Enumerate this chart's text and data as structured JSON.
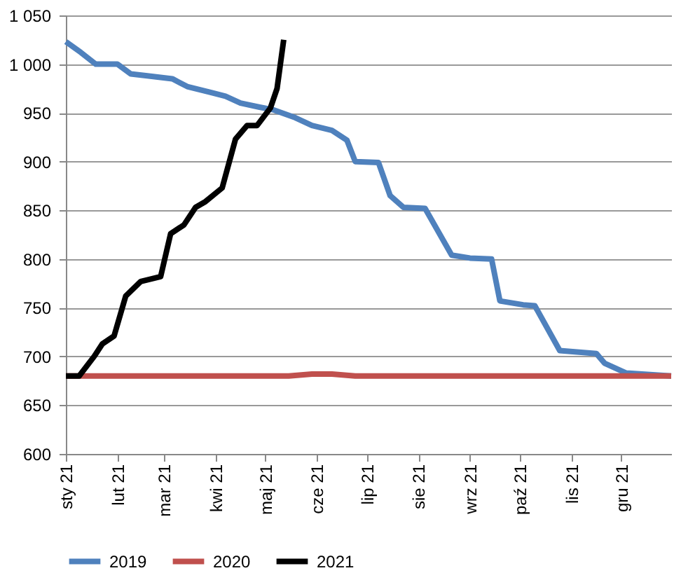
{
  "chart_data": {
    "type": "line",
    "xlim": [
      "2021-01-01",
      "2021-12-31"
    ],
    "xticks": [
      {
        "value": "2021-01-01",
        "label": "sty 21"
      },
      {
        "value": "2021-02-01",
        "label": "lut 21"
      },
      {
        "value": "2021-03-01",
        "label": "mar 21"
      },
      {
        "value": "2021-04-01",
        "label": "kwi 21"
      },
      {
        "value": "2021-05-01",
        "label": "maj 21"
      },
      {
        "value": "2021-06-01",
        "label": "cze 21"
      },
      {
        "value": "2021-07-01",
        "label": "lip 21"
      },
      {
        "value": "2021-08-01",
        "label": "sie 21"
      },
      {
        "value": "2021-09-01",
        "label": "wrz 21"
      },
      {
        "value": "2021-10-01",
        "label": "paź 21"
      },
      {
        "value": "2021-11-01",
        "label": "lis 21"
      },
      {
        "value": "2021-12-01",
        "label": "gru 21"
      }
    ],
    "ylim": [
      600,
      1050
    ],
    "yticks": [
      600,
      650,
      700,
      750,
      800,
      850,
      900,
      950,
      {
        "value": 1000,
        "label": "1 000"
      },
      {
        "value": 1050,
        "label": "1 050"
      }
    ],
    "grid": "y",
    "legend": "bottom",
    "marker": "none",
    "line_style": "solid",
    "series": [
      {
        "name": "2019",
        "color": "#4f81bd",
        "x": [
          "2021-01-01",
          "2021-01-10",
          "2021-01-19",
          "2021-02-01",
          "2021-02-09",
          "2021-02-19",
          "2021-03-06",
          "2021-03-15",
          "2021-03-29",
          "2021-04-07",
          "2021-04-16",
          "2021-04-27",
          "2021-05-06",
          "2021-05-19",
          "2021-05-29",
          "2021-06-10",
          "2021-06-19",
          "2021-06-24",
          "2021-07-08",
          "2021-07-15",
          "2021-07-23",
          "2021-08-05",
          "2021-08-21",
          "2021-09-01",
          "2021-09-14",
          "2021-09-19",
          "2021-10-03",
          "2021-10-10",
          "2021-10-25",
          "2021-11-16",
          "2021-11-21",
          "2021-12-04",
          "2021-12-31"
        ],
        "values": [
          1023,
          1012,
          1000,
          1000,
          990,
          988,
          985,
          977,
          971,
          967,
          960,
          956,
          953,
          945,
          937,
          932,
          922,
          900,
          899,
          865,
          853,
          852,
          804,
          801,
          800,
          757,
          753,
          752,
          706,
          703,
          693,
          683,
          680
        ]
      },
      {
        "name": "2020",
        "color": "#c0504d",
        "x": [
          "2021-01-01",
          "2021-05-15",
          "2021-05-29",
          "2021-06-10",
          "2021-06-24",
          "2021-12-31"
        ],
        "values": [
          680,
          680,
          682,
          682,
          680,
          680
        ]
      },
      {
        "name": "2021",
        "color": "#000000",
        "x": [
          "2021-01-01",
          "2021-01-09",
          "2021-01-18",
          "2021-01-23",
          "2021-01-30",
          "2021-02-06",
          "2021-02-15",
          "2021-02-27",
          "2021-03-05",
          "2021-03-13",
          "2021-03-20",
          "2021-03-26",
          "2021-04-05",
          "2021-04-13",
          "2021-04-20",
          "2021-04-26",
          "2021-05-04",
          "2021-05-08",
          "2021-05-12"
        ],
        "values": [
          680,
          680,
          700,
          713,
          721,
          762,
          777,
          782,
          826,
          835,
          853,
          859,
          873,
          923,
          937,
          937,
          955,
          975,
          1025
        ]
      }
    ]
  }
}
